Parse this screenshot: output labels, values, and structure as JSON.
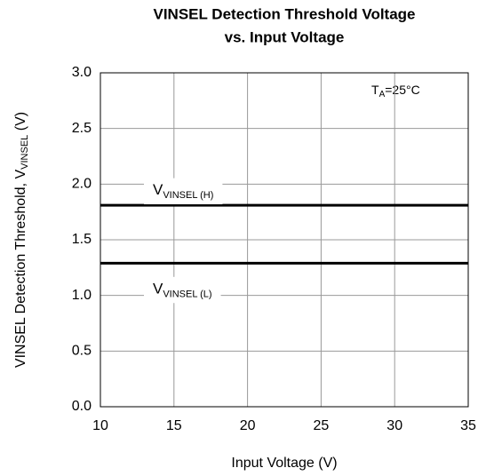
{
  "chart_data": {
    "type": "line",
    "title": [
      "VINSEL Detection Threshold Voltage",
      "vs. Input Voltage"
    ],
    "x_label": "Input Voltage (V)",
    "y_label": {
      "main": "VINSEL Detection Threshold, V",
      "sub": "VINSEL",
      "unit": " (V)"
    },
    "annotation": {
      "main": "T",
      "sub": "A",
      "rest": "=25°C"
    },
    "x": [
      10,
      35
    ],
    "series": [
      {
        "name": "V",
        "name_sub": "VINSEL (H)",
        "color": "#000000",
        "values": [
          1.81,
          1.81
        ]
      },
      {
        "name": "V",
        "name_sub": "VINSEL (L)",
        "color": "#000000",
        "values": [
          1.29,
          1.29
        ]
      }
    ],
    "xlim": [
      10,
      35
    ],
    "xticks": [
      10,
      15,
      20,
      25,
      30,
      35
    ],
    "ylim": [
      0,
      3
    ],
    "yticks": [
      {
        "value": 0,
        "label": "0.0"
      },
      {
        "value": 0.5,
        "label": "0.5"
      },
      {
        "value": 1,
        "label": "1.0"
      },
      {
        "value": 1.5,
        "label": "1.5"
      },
      {
        "value": 2,
        "label": "2.0"
      },
      {
        "value": 2.5,
        "label": "2.5"
      },
      {
        "value": 3,
        "label": "3.0"
      }
    ],
    "grid": true
  }
}
